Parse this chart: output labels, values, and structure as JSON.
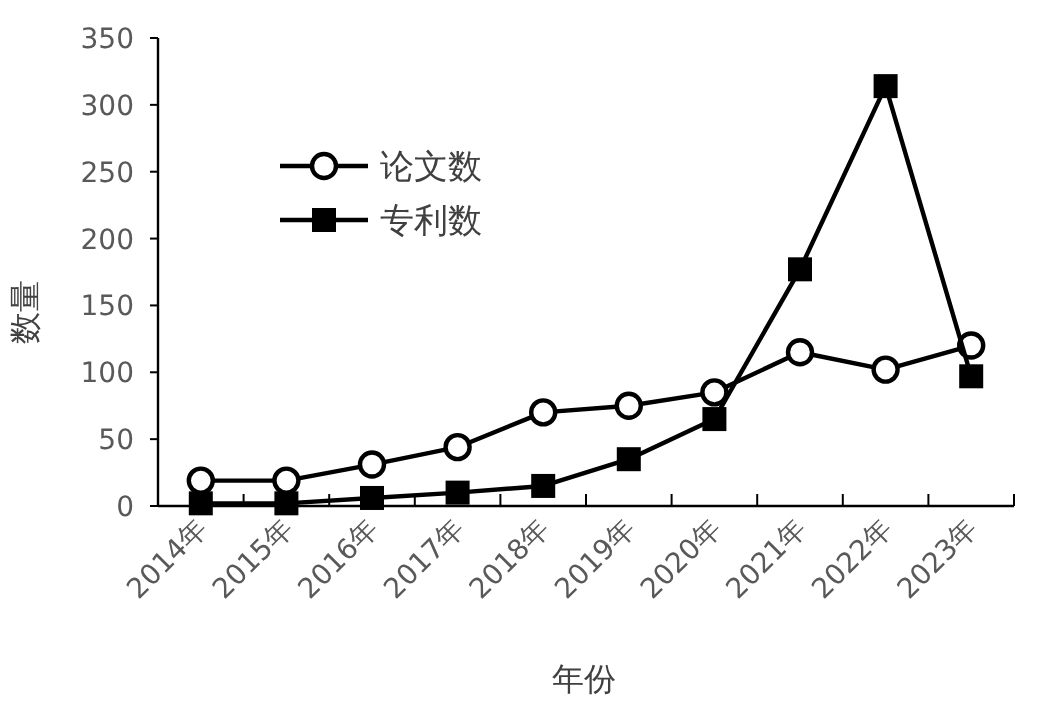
{
  "chart_data": {
    "type": "line",
    "xlabel": "年份",
    "ylabel": "数量",
    "categories": [
      "2014年",
      "2015年",
      "2016年",
      "2017年",
      "2018年",
      "2019年",
      "2020年",
      "2021年",
      "2022年",
      "2023年"
    ],
    "series": [
      {
        "name": "论文数",
        "color": "#000000",
        "marker": "circle",
        "values": [
          19,
          19,
          31,
          44,
          70,
          75,
          85,
          115,
          102,
          120
        ]
      },
      {
        "name": "专利数",
        "color": "#000000",
        "marker": "square",
        "values": [
          2,
          2,
          6,
          10,
          15,
          35,
          65,
          177,
          314,
          97
        ]
      }
    ],
    "ylim": [
      0,
      350
    ],
    "yticks": [
      0,
      50,
      100,
      150,
      200,
      250,
      300,
      350
    ],
    "grid": false,
    "legend": "top left",
    "line_style": "solid"
  }
}
